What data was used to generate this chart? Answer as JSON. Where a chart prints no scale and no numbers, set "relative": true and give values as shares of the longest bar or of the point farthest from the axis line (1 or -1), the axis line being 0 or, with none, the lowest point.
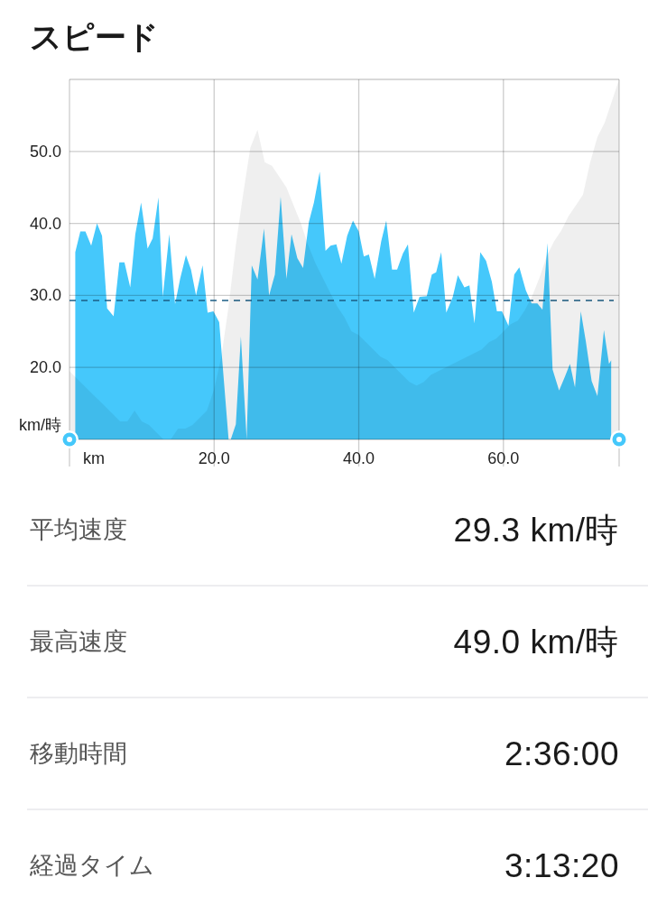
{
  "chart_data": [
    {
      "type": "area",
      "title": "スピード",
      "xlabel": "km",
      "ylabel": "km/時",
      "color": "#45c8fb",
      "x": [
        0.8,
        1.5,
        2.2,
        3.0,
        3.8,
        4.5,
        5.2,
        6.1,
        6.9,
        7.6,
        8.4,
        9.1,
        9.9,
        10.8,
        11.5,
        12.3,
        12.9,
        13.8,
        14.6,
        15.3,
        16.1,
        16.8,
        17.5,
        18.4,
        19.1,
        19.9,
        20.7,
        22.0,
        22.3,
        23.0,
        23.7,
        24.5,
        25.2,
        26.0,
        26.9,
        27.6,
        28.4,
        29.2,
        30.0,
        30.7,
        31.5,
        32.3,
        33.1,
        33.8,
        34.6,
        35.4,
        36.1,
        36.9,
        37.6,
        38.4,
        39.2,
        40.0,
        40.7,
        41.4,
        42.2,
        43.1,
        43.8,
        44.6,
        45.3,
        46.1,
        46.8,
        47.6,
        48.4,
        49.4,
        50.1,
        50.7,
        51.4,
        52.1,
        53.0,
        53.7,
        54.6,
        55.3,
        56.0,
        56.8,
        57.6,
        58.4,
        59.1,
        59.8,
        60.7,
        61.5,
        62.2,
        63.1,
        63.9,
        64.7,
        65.4,
        66.1,
        66.8,
        67.7,
        68.5,
        69.2,
        69.9,
        70.7,
        71.4,
        72.2,
        73.0,
        73.9,
        74.6,
        74.9
      ],
      "values": [
        36.0,
        38.9,
        38.9,
        36.9,
        40.0,
        38.3,
        28.2,
        27.1,
        34.6,
        34.6,
        31.1,
        38.5,
        42.9,
        36.5,
        37.9,
        43.6,
        29.8,
        38.5,
        28.8,
        32.3,
        35.6,
        33.6,
        30.0,
        34.2,
        27.6,
        27.8,
        26.3,
        10,
        10,
        12.1,
        24.3,
        10,
        34.2,
        32.2,
        39.3,
        30.0,
        32.9,
        43.7,
        32.3,
        38.5,
        35.2,
        33.8,
        40.2,
        42.9,
        47.2,
        36.2,
        36.9,
        37.1,
        34.4,
        38.3,
        40.4,
        38.9,
        35.4,
        35.7,
        32.3,
        37.5,
        40.4,
        33.6,
        33.6,
        35.8,
        37.1,
        27.6,
        29.8,
        29.9,
        32.9,
        33.2,
        36.0,
        27.6,
        29.8,
        32.8,
        31.1,
        31.4,
        26.1,
        36.0,
        34.8,
        31.9,
        27.8,
        27.8,
        25.8,
        32.9,
        33.9,
        30.7,
        28.9,
        28.9,
        28.0,
        37.3,
        19.7,
        16.8,
        18.7,
        20.5,
        17.2,
        27.8,
        23.6,
        18.1,
        16.0,
        25.2,
        20.5,
        21.0
      ],
      "xlim": [
        0,
        76
      ],
      "ylim": [
        10,
        60
      ],
      "xticks": [
        {
          "value": 0,
          "label": null
        },
        {
          "value": 20,
          "label": "20.0"
        },
        {
          "value": 40,
          "label": "40.0"
        },
        {
          "value": 60,
          "label": "60.0"
        }
      ],
      "yticks": [
        {
          "value": 10,
          "label": null
        },
        {
          "value": 20,
          "label": "20.0"
        },
        {
          "value": 30,
          "label": "30.0"
        },
        {
          "value": 40,
          "label": "40.0"
        },
        {
          "value": 50,
          "label": "50.0"
        },
        {
          "value": 60,
          "label": null
        }
      ],
      "grid": true,
      "ref_lines": [
        {
          "axis": "y",
          "value": 29.3,
          "color": "#1b5e85",
          "line_style": "dashed"
        }
      ]
    },
    {
      "type": "area",
      "relative": true,
      "color": "#efefef",
      "categories": [
        null,
        null,
        null,
        null,
        null,
        null,
        null,
        null,
        null,
        null,
        null,
        null,
        null,
        null,
        null,
        null,
        null,
        null,
        null,
        null,
        null,
        null,
        null,
        null,
        null,
        null,
        null,
        null,
        null,
        null,
        null,
        null,
        null,
        null,
        null,
        null,
        null,
        null,
        null,
        null,
        null,
        null,
        null,
        null,
        null,
        null,
        null,
        null,
        null,
        null,
        null,
        null,
        null,
        null,
        null,
        null,
        null,
        null,
        null,
        null,
        null,
        null,
        null,
        null,
        null,
        null,
        null,
        null,
        null,
        null,
        null,
        null,
        null,
        null,
        null,
        null,
        null
      ],
      "values": [
        0.19,
        0.17,
        0.15,
        0.13,
        0.11,
        0.09,
        0.07,
        0.05,
        0.05,
        0.08,
        0.05,
        0.04,
        0.02,
        0,
        0,
        0.03,
        0.03,
        0.04,
        0.06,
        0.08,
        0.14,
        0.23,
        0.37,
        0.54,
        0.68,
        0.81,
        0.86,
        0.77,
        0.76,
        0.73,
        0.7,
        0.65,
        0.6,
        0.54,
        0.49,
        0.45,
        0.41,
        0.37,
        0.34,
        0.3,
        0.29,
        0.27,
        0.25,
        0.23,
        0.22,
        0.2,
        0.18,
        0.16,
        0.15,
        0.16,
        0.18,
        0.19,
        0.2,
        0.21,
        0.22,
        0.23,
        0.24,
        0.25,
        0.27,
        0.28,
        0.3,
        0.32,
        0.33,
        0.36,
        0.4,
        0.45,
        0.51,
        0.55,
        0.58,
        0.62,
        0.65,
        0.68,
        0.77,
        0.84,
        0.88,
        0.94,
        1
      ]
    },
    {
      "type": "other",
      "annotations": [
        "平均速度",
        "29.3 km/時",
        "最高速度",
        "49.0 km/時",
        "移動時間",
        "2:36:00",
        "経過タイム",
        "3:13:20"
      ]
    }
  ]
}
